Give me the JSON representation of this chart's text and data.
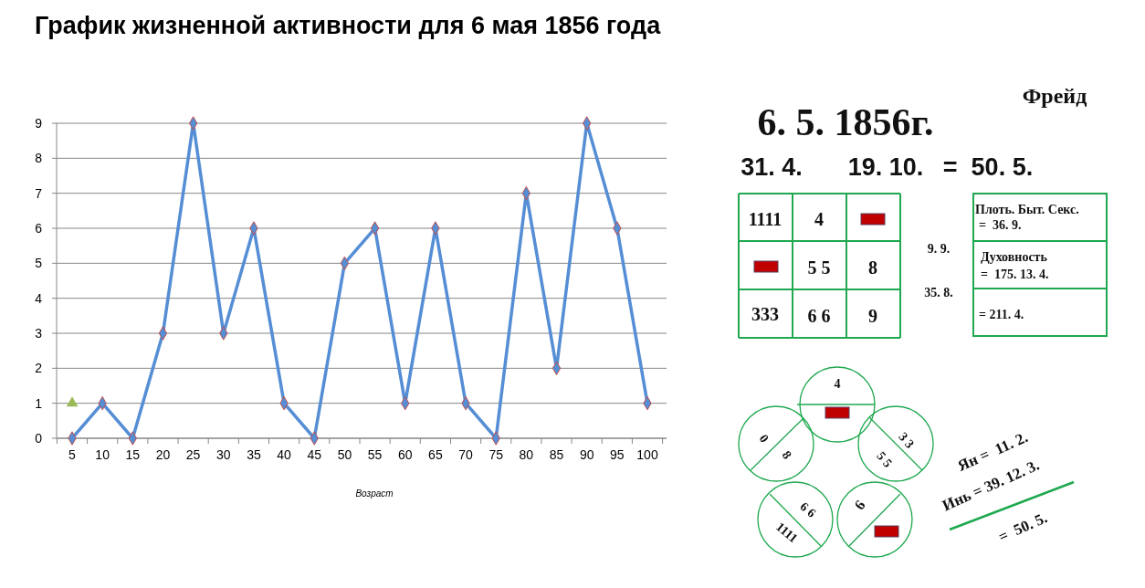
{
  "chart_data": [
    {
      "type": "line",
      "title": "График жизненной активности для 6 мая 1856 года",
      "xlabel": "Возраст",
      "categories": [
        "5",
        "10",
        "15",
        "20",
        "25",
        "30",
        "35",
        "40",
        "45",
        "50",
        "55",
        "60",
        "65",
        "70",
        "75",
        "80",
        "85",
        "90",
        "95",
        "100"
      ],
      "ylim": [
        0,
        9
      ],
      "yticks": [
        0,
        1,
        2,
        3,
        4,
        5,
        6,
        7,
        8,
        9
      ],
      "grid": "y",
      "marker": "diamond",
      "series": [
        {
          "color": "#558ed5",
          "values": [
            0,
            1,
            0,
            3,
            9,
            3,
            6,
            1,
            0,
            5,
            6,
            1,
            6,
            1,
            0,
            7,
            2,
            9,
            6,
            1
          ]
        },
        {
          "type": "scatter",
          "marker": "triangle",
          "color": "#9bbb59",
          "values": [
            1,
            null,
            null,
            null,
            null,
            null,
            null,
            null,
            null,
            null,
            null,
            null,
            null,
            null,
            null,
            null,
            null,
            null,
            null,
            null
          ]
        }
      ]
    },
    {
      "type": "other",
      "annotations": [
        "Фрейд",
        "6. 5. 1856г.",
        "31. 4.",
        "19. 10.",
        "=  50. 5.",
        "1111",
        "4",
        "5 5",
        "8",
        "333",
        "6 6",
        "9",
        "9. 9.",
        "35. 8.",
        "Плоть. Быт. Секс.",
        "=  36. 9.",
        "Духовность",
        "=  175. 13. 4.",
        "= 211. 4.",
        "4",
        "0",
        "8",
        "3 3",
        "5 5",
        "6 6",
        "1111",
        "9",
        "Ян =  11. 2.",
        "Инь = 39. 12. 3.",
        "=  50. 5."
      ]
    }
  ]
}
